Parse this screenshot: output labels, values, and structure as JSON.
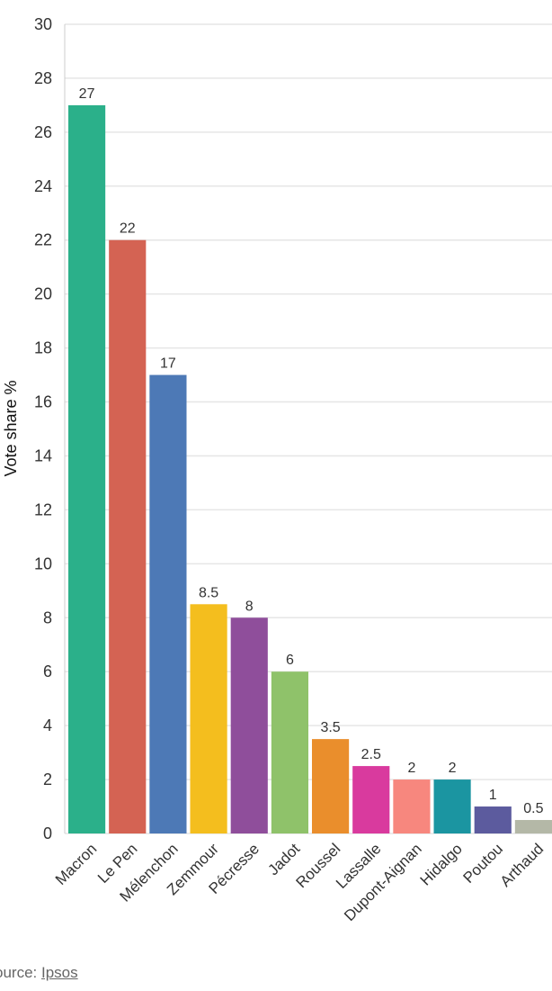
{
  "chart_data": {
    "type": "bar",
    "title": "",
    "xlabel": "",
    "ylabel": "Vote share %",
    "ylim": [
      0,
      30
    ],
    "yticks": [
      0,
      2,
      4,
      6,
      8,
      10,
      12,
      14,
      16,
      18,
      20,
      22,
      24,
      26,
      28,
      30
    ],
    "grid": true,
    "categories": [
      "Macron",
      "Le Pen",
      "Mélenchon",
      "Zemmour",
      "Pécresse",
      "Jadot",
      "Roussel",
      "Lassalle",
      "Dupont-Aignan",
      "Hidalgo",
      "Poutou",
      "Arthaud"
    ],
    "values": [
      27,
      22,
      17,
      8.5,
      8,
      6,
      3.5,
      2.5,
      2,
      2,
      1,
      0.5
    ],
    "colors": [
      "#2bb08a",
      "#d46353",
      "#4d79b6",
      "#f4be1e",
      "#8f4e9b",
      "#8fc26a",
      "#ea8e2c",
      "#d93a9e",
      "#f7877e",
      "#1b95a1",
      "#5c5b9e",
      "#b4b8a7"
    ]
  },
  "source": {
    "prefix": "ource: ",
    "name": "Ipsos"
  }
}
